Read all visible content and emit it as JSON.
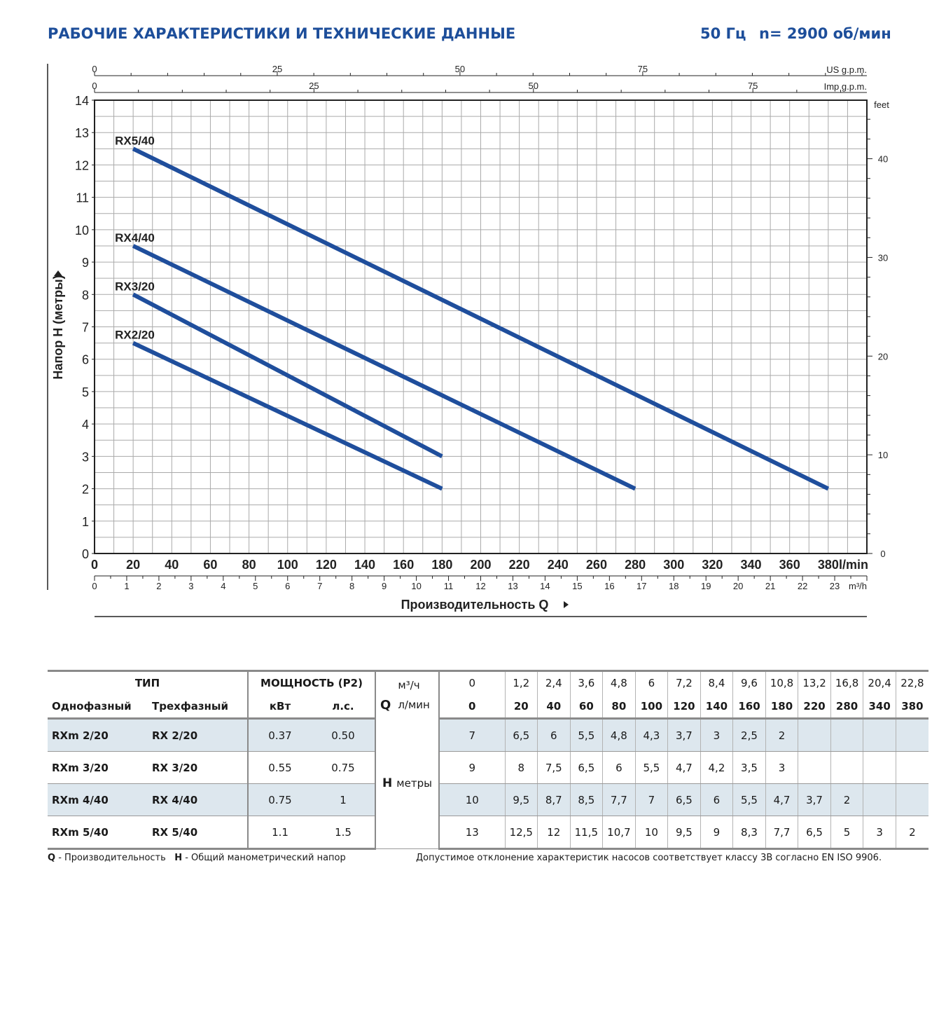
{
  "header": {
    "title": "РАБОЧИЕ ХАРАКТЕРИСТИКИ И ТЕХНИЧЕСКИЕ ДАННЫЕ",
    "frequency": "50 Гц",
    "speed": "n= 2900 об/мин"
  },
  "colors": {
    "title": "#1d4e9a",
    "curve": "#1f4e9c",
    "grid": "#aaaaaa",
    "table_shade": "#dde7ee"
  },
  "chart_data": {
    "type": "line",
    "xlabel": "Производительность Q",
    "ylabel": "Напор H (метры)",
    "x_unit": "l/min",
    "xlim": [
      0,
      400
    ],
    "ylim": [
      0,
      14
    ],
    "x_ticks": [
      0,
      20,
      40,
      60,
      80,
      100,
      120,
      140,
      160,
      180,
      200,
      220,
      240,
      260,
      280,
      300,
      320,
      340,
      360,
      380
    ],
    "y_ticks": [
      0,
      1,
      2,
      3,
      4,
      5,
      6,
      7,
      8,
      9,
      10,
      11,
      12,
      13,
      14
    ],
    "grid": true,
    "secondary_axes": {
      "us_gpm": {
        "label": "US g.p.m.",
        "ticks": [
          0,
          25,
          50,
          75
        ]
      },
      "imp_gpm": {
        "label": "Imp g.p.m.",
        "ticks": [
          0,
          25,
          50,
          75
        ]
      },
      "m3h": {
        "label": "m³/h",
        "ticks": [
          0,
          1,
          2,
          3,
          4,
          5,
          6,
          7,
          8,
          9,
          10,
          11,
          12,
          13,
          14,
          15,
          16,
          17,
          18,
          19,
          20,
          21,
          22,
          23
        ]
      },
      "feet": {
        "label": "feet",
        "ticks": [
          0,
          10,
          20,
          30,
          40
        ]
      }
    },
    "series": [
      {
        "name": "RX5/40",
        "x": [
          20,
          380
        ],
        "y": [
          12.5,
          2
        ]
      },
      {
        "name": "RX4/40",
        "x": [
          20,
          280
        ],
        "y": [
          9.5,
          2
        ]
      },
      {
        "name": "RX3/20",
        "x": [
          20,
          180
        ],
        "y": [
          8,
          3
        ]
      },
      {
        "name": "RX2/20",
        "x": [
          20,
          180
        ],
        "y": [
          6.5,
          2
        ]
      }
    ]
  },
  "table": {
    "type_header": "ТИП",
    "power_header": "МОЩНОСТЬ (P2)",
    "single_phase": "Однофазный",
    "three_phase": "Трехфазный",
    "kw": "кВт",
    "hp": "л.с.",
    "q_symbol": "Q",
    "q_unit_m3h": "м³/ч",
    "q_unit_lmin": "л/мин",
    "h_symbol": "H",
    "h_unit": "метры",
    "q_m3h": [
      "0",
      "1,2",
      "2,4",
      "3,6",
      "4,8",
      "6",
      "7,2",
      "8,4",
      "9,6",
      "10,8",
      "13,2",
      "16,8",
      "20,4",
      "22,8"
    ],
    "q_lmin": [
      "0",
      "20",
      "40",
      "60",
      "80",
      "100",
      "120",
      "140",
      "160",
      "180",
      "220",
      "280",
      "340",
      "380"
    ],
    "rows": [
      {
        "single": "RXm 2/20",
        "three": "RX 2/20",
        "kw": "0.37",
        "hp": "0.50",
        "h": [
          "7",
          "6,5",
          "6",
          "5,5",
          "4,8",
          "4,3",
          "3,7",
          "3",
          "2,5",
          "2",
          "",
          "",
          "",
          ""
        ]
      },
      {
        "single": "RXm 3/20",
        "three": "RX 3/20",
        "kw": "0.55",
        "hp": "0.75",
        "h": [
          "9",
          "8",
          "7,5",
          "6,5",
          "6",
          "5,5",
          "4,7",
          "4,2",
          "3,5",
          "3",
          "",
          "",
          "",
          ""
        ]
      },
      {
        "single": "RXm 4/40",
        "three": "RX 4/40",
        "kw": "0.75",
        "hp": "1",
        "h": [
          "10",
          "9,5",
          "8,7",
          "8,5",
          "7,7",
          "7",
          "6,5",
          "6",
          "5,5",
          "4,7",
          "3,7",
          "2",
          "",
          ""
        ]
      },
      {
        "single": "RXm 5/40",
        "three": "RX 5/40",
        "kw": "1.1",
        "hp": "1.5",
        "h": [
          "13",
          "12,5",
          "12",
          "11,5",
          "10,7",
          "10",
          "9,5",
          "9",
          "8,3",
          "7,7",
          "6,5",
          "5",
          "3",
          "2"
        ]
      }
    ]
  },
  "footer": {
    "q_symbol": "Q",
    "q_text": " - Производительность",
    "h_symbol": "H",
    "h_text": " - Общий манометрический напор",
    "note": "Допустимое отклонение характеристик насосов соответствует классу 3B согласно EN ISO 9906."
  }
}
